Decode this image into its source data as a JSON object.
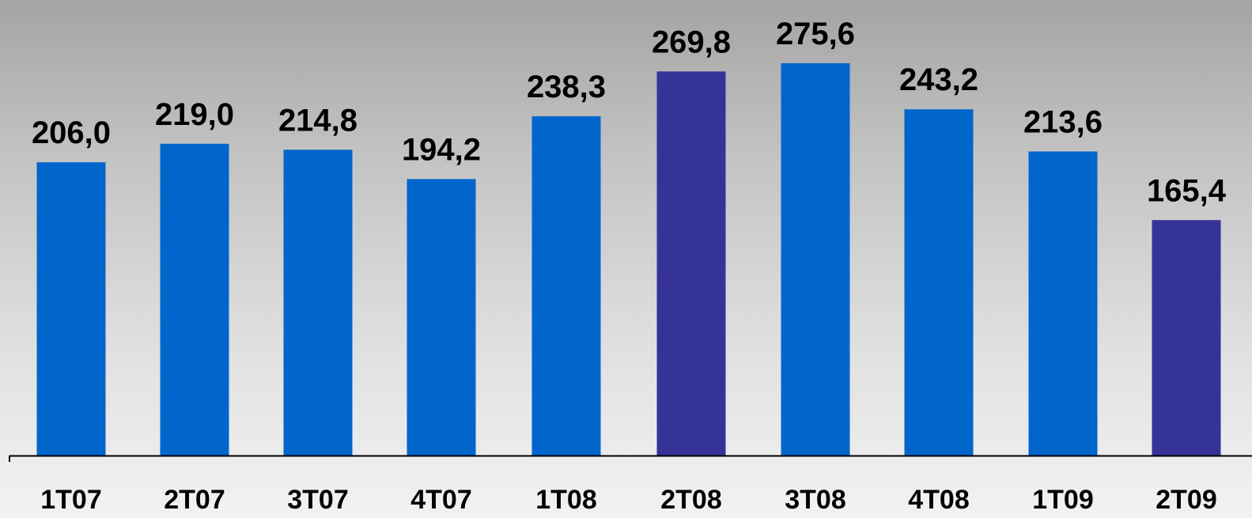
{
  "chart_data": {
    "type": "bar",
    "title": "",
    "xlabel": "",
    "ylabel": "",
    "grid": false,
    "legend": "none",
    "ylim": [
      0,
      300
    ],
    "categories": [
      "1T07",
      "2T07",
      "3T07",
      "4T07",
      "1T08",
      "2T08",
      "3T08",
      "4T08",
      "1T09",
      "2T09"
    ],
    "values": [
      206.0,
      219.0,
      214.8,
      194.2,
      238.3,
      269.8,
      275.6,
      243.2,
      213.6,
      165.4
    ],
    "value_labels": [
      "206,0",
      "219,0",
      "214,8",
      "194,2",
      "238,3",
      "269,8",
      "275,6",
      "243,2",
      "213,6",
      "165,4"
    ],
    "highlighted": [
      5,
      9
    ],
    "colors": {
      "bar": "#0066cc",
      "highlight": "#363396",
      "axis": "#000000"
    }
  }
}
